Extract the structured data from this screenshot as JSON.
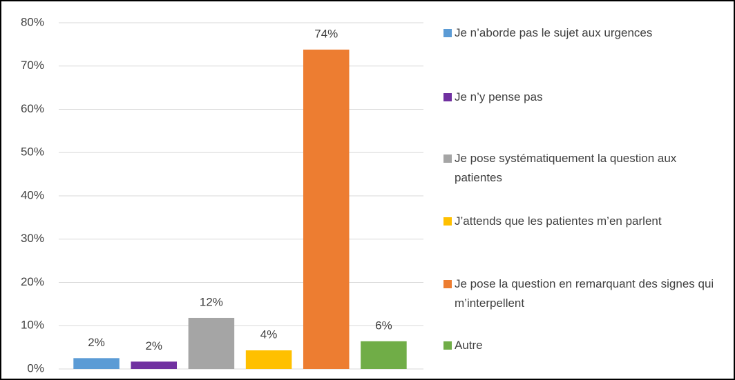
{
  "chart_data": {
    "type": "bar",
    "categories": [
      null
    ],
    "series": [
      {
        "name": "Je n’aborde pas le sujet aux urgences",
        "color": "#5b9bd5",
        "values": [
          2.5
        ],
        "value_labels": [
          "2%"
        ]
      },
      {
        "name": "Je n’y pense pas",
        "color": "#7030a0",
        "values": [
          1.7
        ],
        "value_labels": [
          "2%"
        ]
      },
      {
        "name": "Je pose systématiquement la question aux patientes",
        "color": "#a5a5a5",
        "values": [
          11.8
        ],
        "value_labels": [
          "12%"
        ]
      },
      {
        "name": "J’attends que les patientes m’en parlent",
        "color": "#ffc000",
        "values": [
          4.3
        ],
        "value_labels": [
          "4%"
        ]
      },
      {
        "name": "Je pose la question en remarquant des signes qui m’interpellent",
        "color": "#ed7d31",
        "values": [
          73.8
        ],
        "value_labels": [
          "74%"
        ]
      },
      {
        "name": "Autre",
        "color": "#70ad47",
        "values": [
          6.4
        ],
        "value_labels": [
          "6%"
        ]
      }
    ],
    "ylim": [
      0,
      80
    ],
    "yticks": [
      {
        "value": 0,
        "label": "0%"
      },
      {
        "value": 10,
        "label": "10%"
      },
      {
        "value": 20,
        "label": "20%"
      },
      {
        "value": 30,
        "label": "30%"
      },
      {
        "value": 40,
        "label": "40%"
      },
      {
        "value": 50,
        "label": "50%"
      },
      {
        "value": 60,
        "label": "60%"
      },
      {
        "value": 70,
        "label": "70%"
      },
      {
        "value": 80,
        "label": "80%"
      }
    ],
    "grid": true,
    "legend": "right"
  }
}
